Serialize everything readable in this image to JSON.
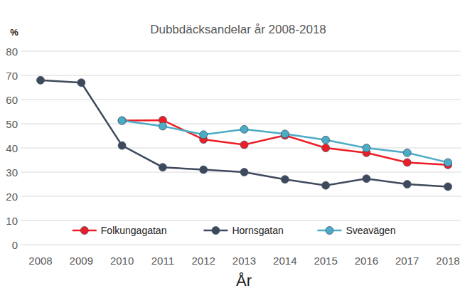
{
  "chart_data": {
    "type": "line",
    "title": "Dubbdäcksandelar år 2008-2018",
    "y_label": "%",
    "x_label": "År",
    "categories": [
      "2008",
      "2009",
      "2010",
      "2011",
      "2012",
      "2013",
      "2014",
      "2015",
      "2016",
      "2017",
      "2018"
    ],
    "series": [
      {
        "name": "Folkungagatan",
        "color": "#ee1c25",
        "marker": "circle",
        "values": [
          null,
          null,
          51.3,
          51.5,
          43.5,
          41.3,
          45.2,
          40,
          38,
          34,
          33
        ]
      },
      {
        "name": "Hornsgatan",
        "color": "#3e4a5c",
        "marker": "circle",
        "values": [
          68,
          67,
          41,
          32,
          31,
          30,
          27,
          24.5,
          27.3,
          25,
          24
        ]
      },
      {
        "name": "Sveavägen",
        "color": "#4bacc6",
        "marker": "circle",
        "values": [
          null,
          null,
          51.3,
          49,
          45.5,
          47.7,
          45.8,
          43.3,
          40,
          38,
          34
        ]
      }
    ],
    "ylim": [
      0,
      80
    ],
    "yticks": [
      0,
      10,
      20,
      30,
      40,
      50,
      60,
      70,
      80
    ],
    "grid": true,
    "legend": "bottom"
  }
}
